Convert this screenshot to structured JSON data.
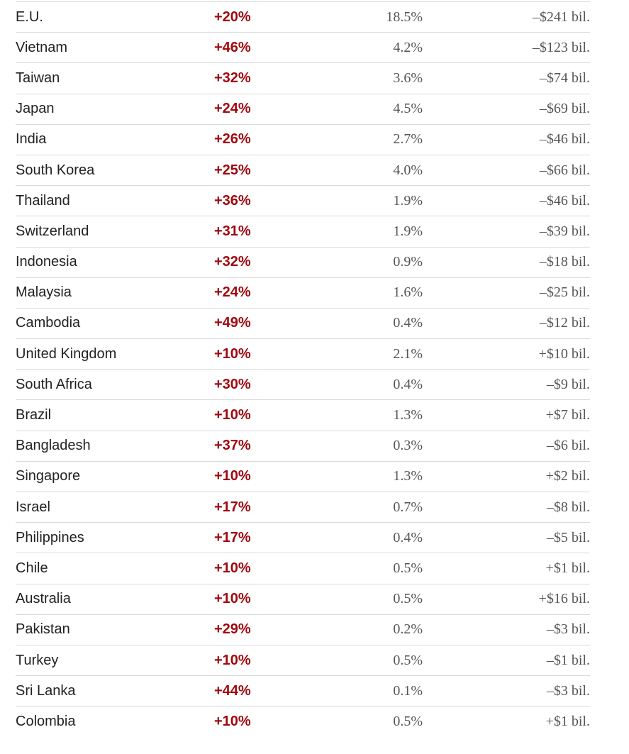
{
  "table": {
    "rows": [
      {
        "country": "E.U.",
        "tariff": "+20%",
        "share": "18.5%",
        "balance": "–$241 bil."
      },
      {
        "country": "Vietnam",
        "tariff": "+46%",
        "share": "4.2%",
        "balance": "–$123 bil."
      },
      {
        "country": "Taiwan",
        "tariff": "+32%",
        "share": "3.6%",
        "balance": "–$74 bil."
      },
      {
        "country": "Japan",
        "tariff": "+24%",
        "share": "4.5%",
        "balance": "–$69 bil."
      },
      {
        "country": "India",
        "tariff": "+26%",
        "share": "2.7%",
        "balance": "–$46 bil."
      },
      {
        "country": "South Korea",
        "tariff": "+25%",
        "share": "4.0%",
        "balance": "–$66 bil."
      },
      {
        "country": "Thailand",
        "tariff": "+36%",
        "share": "1.9%",
        "balance": "–$46 bil."
      },
      {
        "country": "Switzerland",
        "tariff": "+31%",
        "share": "1.9%",
        "balance": "–$39 bil."
      },
      {
        "country": "Indonesia",
        "tariff": "+32%",
        "share": "0.9%",
        "balance": "–$18 bil."
      },
      {
        "country": "Malaysia",
        "tariff": "+24%",
        "share": "1.6%",
        "balance": "–$25 bil."
      },
      {
        "country": "Cambodia",
        "tariff": "+49%",
        "share": "0.4%",
        "balance": "–$12 bil."
      },
      {
        "country": "United Kingdom",
        "tariff": "+10%",
        "share": "2.1%",
        "balance": "+$10 bil."
      },
      {
        "country": "South Africa",
        "tariff": "+30%",
        "share": "0.4%",
        "balance": "–$9 bil."
      },
      {
        "country": "Brazil",
        "tariff": "+10%",
        "share": "1.3%",
        "balance": "+$7 bil."
      },
      {
        "country": "Bangladesh",
        "tariff": "+37%",
        "share": "0.3%",
        "balance": "–$6 bil."
      },
      {
        "country": "Singapore",
        "tariff": "+10%",
        "share": "1.3%",
        "balance": "+$2 bil."
      },
      {
        "country": "Israel",
        "tariff": "+17%",
        "share": "0.7%",
        "balance": "–$8 bil."
      },
      {
        "country": "Philippines",
        "tariff": "+17%",
        "share": "0.4%",
        "balance": "–$5 bil."
      },
      {
        "country": "Chile",
        "tariff": "+10%",
        "share": "0.5%",
        "balance": "+$1 bil."
      },
      {
        "country": "Australia",
        "tariff": "+10%",
        "share": "0.5%",
        "balance": "+$16 bil."
      },
      {
        "country": "Pakistan",
        "tariff": "+29%",
        "share": "0.2%",
        "balance": "–$3 bil."
      },
      {
        "country": "Turkey",
        "tariff": "+10%",
        "share": "0.5%",
        "balance": "–$1 bil."
      },
      {
        "country": "Sri Lanka",
        "tariff": "+44%",
        "share": "0.1%",
        "balance": "–$3 bil."
      },
      {
        "country": "Colombia",
        "tariff": "+10%",
        "share": "0.5%",
        "balance": "+$1 bil."
      }
    ]
  },
  "colors": {
    "tariff_text": "#a0080f",
    "country_text": "#222222",
    "numeric_text": "#555555",
    "row_divider": "#d9d9d9"
  }
}
